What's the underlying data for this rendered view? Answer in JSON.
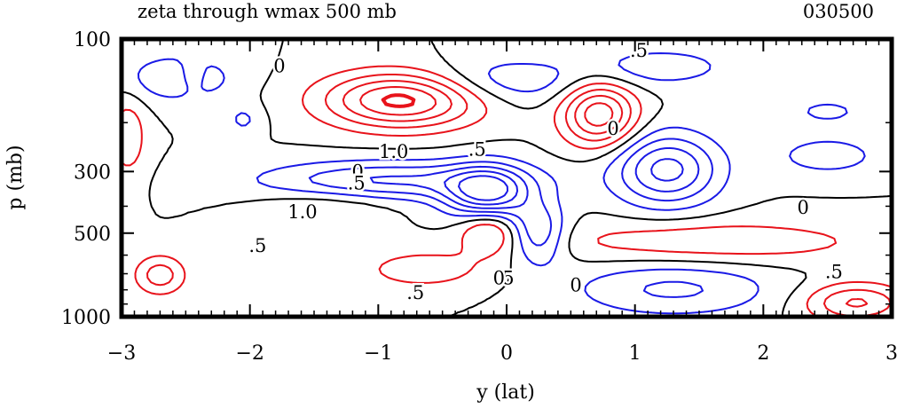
{
  "chart_data": {
    "type": "contour",
    "title": "zeta through wmax 500 mb",
    "timestamp": "030500",
    "xlabel": "y (lat)",
    "ylabel": "p (mb)",
    "xlim": [
      -3,
      3
    ],
    "ylim": [
      1000,
      100
    ],
    "yscale": "log",
    "xticks": [
      -3,
      -2,
      -1,
      0,
      1,
      2,
      3
    ],
    "xtick_labels": [
      "−3",
      "−2",
      "−1",
      "0",
      "1",
      "2",
      "3"
    ],
    "yticks": [
      100,
      300,
      500,
      1000
    ],
    "ytick_labels": [
      "100",
      "300",
      "500",
      "1000"
    ],
    "colors": {
      "positive": "#e8131b",
      "zero": "#000000",
      "negative": "#1a1ae6"
    },
    "contour_labels": [
      {
        "text": "0",
        "x": -1.77,
        "p": 125
      },
      {
        "text": ".5",
        "x": 1.03,
        "p": 110
      },
      {
        "text": "0",
        "x": 0.83,
        "p": 210
      },
      {
        "text": "1.0",
        "x": -0.88,
        "p": 255
      },
      {
        "text": ".5",
        "x": -0.23,
        "p": 250
      },
      {
        "text": "0",
        "x": -1.16,
        "p": 300
      },
      {
        "text": ".5",
        "x": -1.17,
        "p": 330
      },
      {
        "text": "1.0",
        "x": -1.59,
        "p": 420
      },
      {
        "text": "0",
        "x": 2.31,
        "p": 405
      },
      {
        "text": ".5",
        "x": -1.94,
        "p": 555
      },
      {
        "text": ".5",
        "x": 2.55,
        "p": 690
      },
      {
        "text": ".5",
        "x": -0.01,
        "p": 725
      },
      {
        "text": "0",
        "x": -0.06,
        "p": 725
      },
      {
        "text": "0",
        "x": 0.54,
        "p": 770
      },
      {
        "text": ".5",
        "x": -0.71,
        "p": 820
      }
    ]
  }
}
